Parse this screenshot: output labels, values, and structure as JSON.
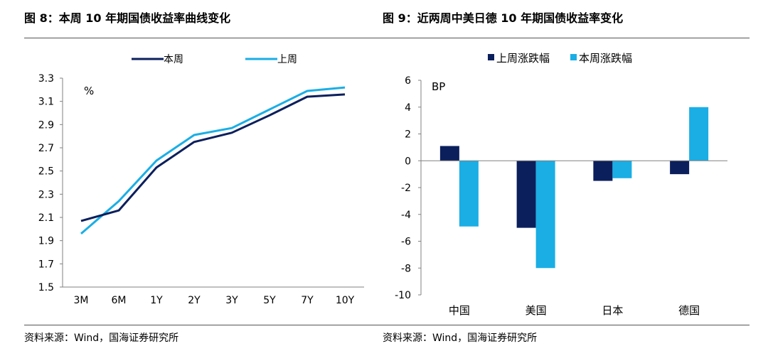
{
  "panel_left": {
    "title": "图 8：本周 10 年期国债收益率曲线变化",
    "source": "资料来源：Wind，国海证券研究所"
  },
  "panel_right": {
    "title": "图 9：近两周中美日德 10 年期国债收益率变化",
    "source": "资料来源：Wind，国海证券研究所"
  },
  "chart_data": [
    {
      "type": "line",
      "unit_label": "%",
      "categories": [
        "3M",
        "6M",
        "1Y",
        "2Y",
        "3Y",
        "5Y",
        "7Y",
        "10Y"
      ],
      "yticks": [
        "3.3",
        "3.1",
        "2.9",
        "2.7",
        "2.5",
        "2.3",
        "2.1",
        "1.9",
        "1.7",
        "1.5"
      ],
      "ylim": [
        1.5,
        3.3
      ],
      "legend_position": "top",
      "series": [
        {
          "name": "本周",
          "color": "#0b1f5c",
          "values": [
            2.07,
            2.16,
            2.53,
            2.75,
            2.83,
            2.98,
            3.14,
            3.16
          ]
        },
        {
          "name": "上周",
          "color": "#1aaee5",
          "values": [
            1.96,
            2.24,
            2.59,
            2.81,
            2.87,
            3.03,
            3.19,
            3.22
          ]
        }
      ]
    },
    {
      "type": "bar",
      "unit_label": "BP",
      "categories": [
        "中国",
        "美国",
        "日本",
        "德国"
      ],
      "yticks": [
        "6",
        "4",
        "2",
        "0",
        "-2",
        "-4",
        "-6",
        "-8",
        "-10"
      ],
      "ylim": [
        -10,
        6
      ],
      "legend_position": "top",
      "series": [
        {
          "name": "上周涨跌幅",
          "color": "#0b1f5c",
          "values": [
            1.1,
            -5.0,
            -1.5,
            -1.0
          ]
        },
        {
          "name": "本周涨跌幅",
          "color": "#1aaee5",
          "values": [
            -4.9,
            -8.0,
            -1.3,
            4.0
          ]
        }
      ]
    }
  ]
}
